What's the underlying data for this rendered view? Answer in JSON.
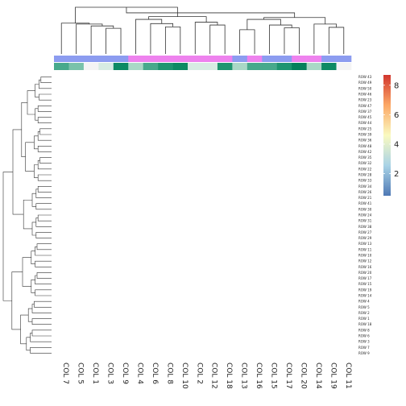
{
  "chart_data": {
    "type": "heatmap",
    "title": "",
    "xlabel": "",
    "ylabel": "",
    "columns": [
      "COL 7",
      "COL 5",
      "COL 1",
      "COL 3",
      "COL 9",
      "COL 4",
      "COL 6",
      "COL 8",
      "COL 10",
      "COL 2",
      "COL 12",
      "COL 18",
      "COL 13",
      "COL 16",
      "COL 15",
      "COL 17",
      "COL 20",
      "COL 14",
      "COL 19",
      "COL 11"
    ],
    "rows": [
      "ROW 43",
      "ROW 49",
      "ROW 50",
      "ROW 46",
      "ROW 23",
      "ROW 47",
      "ROW 37",
      "ROW 45",
      "ROW 44",
      "ROW 25",
      "ROW 39",
      "ROW 36",
      "ROW 48",
      "ROW 42",
      "ROW 35",
      "ROW 32",
      "ROW 22",
      "ROW 28",
      "ROW 33",
      "ROW 34",
      "ROW 26",
      "ROW 21",
      "ROW 41",
      "ROW 30",
      "ROW 24",
      "ROW 31",
      "ROW 38",
      "ROW 27",
      "ROW 29",
      "ROW 13",
      "ROW 11",
      "ROW 10",
      "ROW 12",
      "ROW 16",
      "ROW 20",
      "ROW 17",
      "ROW 15",
      "ROW 19",
      "ROW 14",
      "ROW 4",
      "ROW 5",
      "ROW 2",
      "ROW 1",
      "ROW 18",
      "ROW 8",
      "ROW 6",
      "ROW 3",
      "ROW 7",
      "ROW 9"
    ],
    "column_groups": [
      "blue",
      "blue",
      "blue",
      "blue",
      "blue",
      "magenta",
      "magenta",
      "magenta",
      "magenta",
      "magenta",
      "magenta",
      "magenta",
      "blue",
      "magenta",
      "blue",
      "blue",
      "magenta",
      "magenta",
      "blue",
      "blue"
    ],
    "column_annotation_values": [
      5,
      4,
      1,
      2,
      7,
      3,
      5,
      6,
      7,
      2,
      2,
      6,
      3,
      5,
      5,
      6,
      8,
      3,
      7,
      1
    ],
    "group_colors": {
      "blue": "#8c9cf0",
      "magenta": "#ee82ee"
    },
    "colorbar": {
      "ticks": [
        2,
        4,
        6,
        8
      ],
      "range": [
        0.5,
        8.7
      ],
      "colors": [
        "#4f79b5",
        "#a9d3e6",
        "#fafac0",
        "#fca866",
        "#d1362e"
      ]
    },
    "annotation_palette": [
      "#f4f4f4",
      "#d7ece3",
      "#a9d8c6",
      "#79c2aa",
      "#47a98c",
      "#1e9570",
      "#0d8a63",
      "#06805c"
    ]
  }
}
